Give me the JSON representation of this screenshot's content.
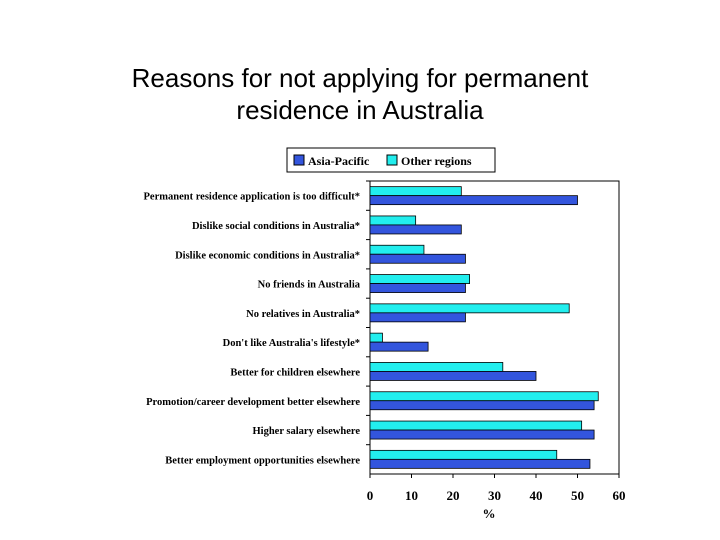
{
  "slide": {
    "title_line1": "Reasons for not applying for permanent",
    "title_line2": "residence in Australia"
  },
  "chart_data": {
    "type": "bar",
    "orientation": "horizontal",
    "xlabel": "%",
    "xlim": [
      0,
      60
    ],
    "xticks": [
      0,
      10,
      20,
      30,
      40,
      50,
      60
    ],
    "legend_placement": "top",
    "grid": false,
    "categories": [
      "Permanent residence application is too difficult*",
      "Dislike social conditions in Australia*",
      "Dislike economic conditions in Australia*",
      "No friends in Australia",
      "No relatives in Australia*",
      "Don't like Australia's lifestyle*",
      "Better for children elsewhere",
      "Promotion/career development better elsewhere",
      "Higher salary elsewhere",
      "Better employment opportunities elsewhere"
    ],
    "series": [
      {
        "name": "Asia-Pacific",
        "color": "#3355dd",
        "values": [
          50,
          22,
          23,
          23,
          23,
          14,
          40,
          54,
          54,
          53
        ]
      },
      {
        "name": "Other regions",
        "color": "#22eeee",
        "values": [
          22,
          11,
          13,
          24,
          48,
          3,
          32,
          55,
          51,
          45
        ]
      }
    ]
  }
}
